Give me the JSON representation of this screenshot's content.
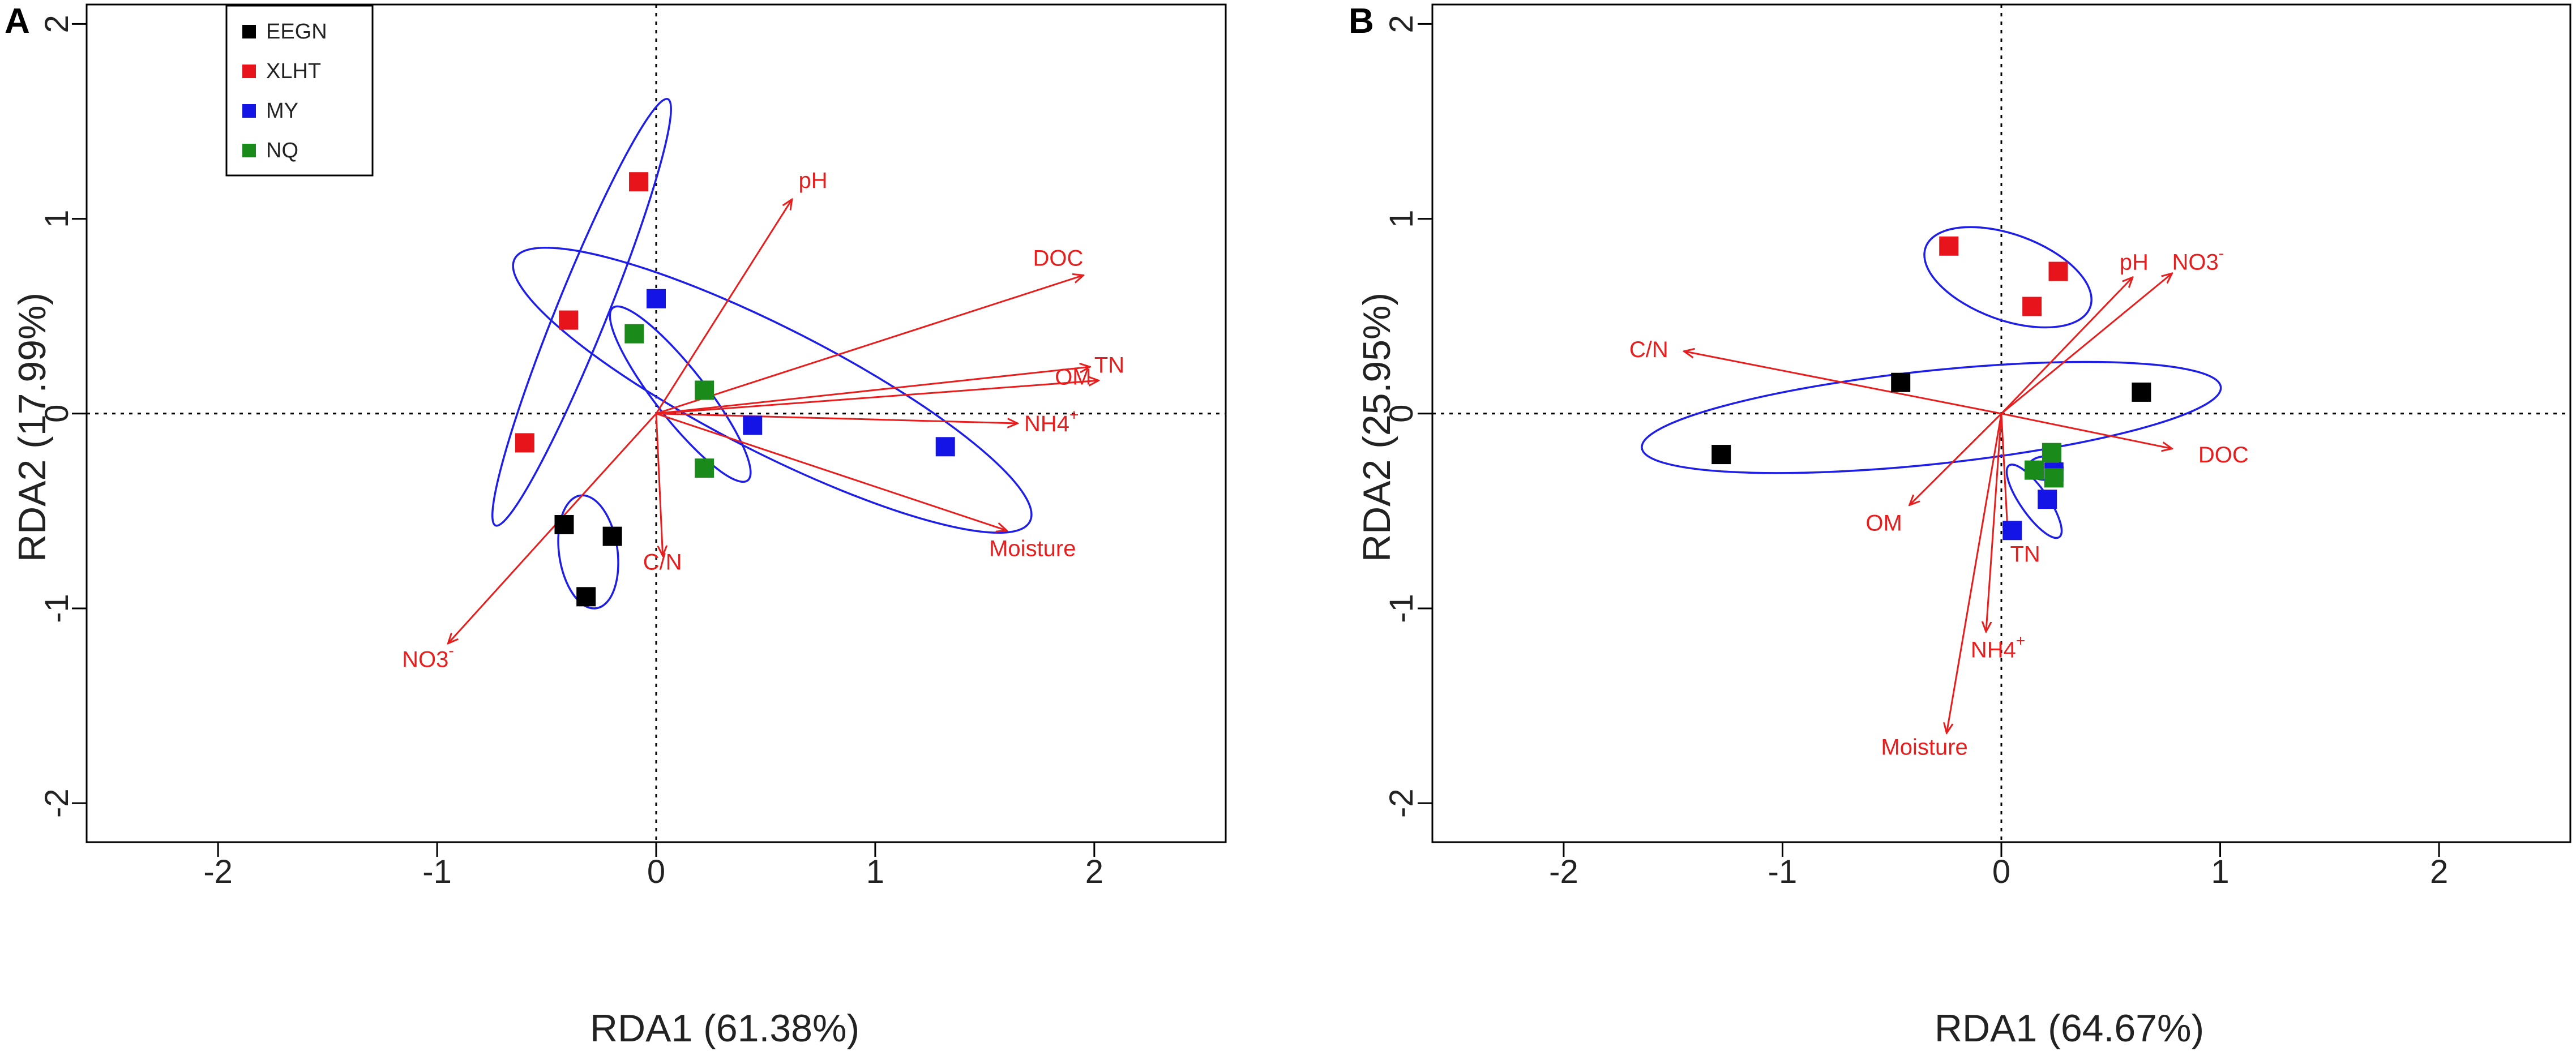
{
  "colors": {
    "EEGN": "#000000",
    "XLHT": "#e8141c",
    "MY": "#1414e6",
    "NQ": "#1a8a1a",
    "arrow": "#e61e1e",
    "ellipse": "#1e1ee6",
    "axis": "#000000"
  },
  "chart_data": [
    {
      "panel_label": "A",
      "type": "scatter",
      "xlabel": "RDA1 (61.38%)",
      "ylabel": "RDA2 (17.99%)",
      "xlim": [
        -2.6,
        2.6
      ],
      "ylim": [
        -2.2,
        2.1
      ],
      "xticks": [
        -2,
        -1,
        0,
        1,
        2
      ],
      "yticks": [
        -2,
        -1,
        0,
        1,
        2
      ],
      "legend": {
        "placement": "top-left",
        "entries": [
          {
            "name": "EEGN",
            "color_key": "EEGN"
          },
          {
            "name": "XLHT",
            "color_key": "XLHT"
          },
          {
            "name": "MY",
            "color_key": "MY"
          },
          {
            "name": "NQ",
            "color_key": "NQ"
          }
        ]
      },
      "series": [
        {
          "name": "EEGN",
          "points": [
            [
              -0.42,
              -0.57
            ],
            [
              -0.2,
              -0.63
            ],
            [
              -0.32,
              -0.94
            ]
          ]
        },
        {
          "name": "XLHT",
          "points": [
            [
              -0.08,
              1.19
            ],
            [
              -0.4,
              0.48
            ],
            [
              -0.6,
              -0.15
            ]
          ]
        },
        {
          "name": "MY",
          "points": [
            [
              0.0,
              0.59
            ],
            [
              0.44,
              -0.06
            ],
            [
              1.32,
              -0.17
            ]
          ]
        },
        {
          "name": "NQ",
          "points": [
            [
              -0.1,
              0.41
            ],
            [
              0.22,
              0.12
            ],
            [
              0.22,
              -0.28
            ]
          ]
        }
      ],
      "arrows": [
        {
          "label": "pH",
          "x": 0.62,
          "y": 1.1,
          "label_x": 0.65,
          "label_y": 1.19
        },
        {
          "label": "DOC",
          "x": 1.95,
          "y": 0.71,
          "label_x": 1.72,
          "label_y": 0.79
        },
        {
          "label": "TN",
          "x": 1.98,
          "y": 0.24,
          "label_x": 2.0,
          "label_y": 0.24
        },
        {
          "label": "OM",
          "x": 2.02,
          "y": 0.17,
          "label_x": 1.82,
          "label_y": 0.18
        },
        {
          "label": "NH4",
          "label_sup": "+",
          "x": 1.65,
          "y": -0.05,
          "label_x": 1.68,
          "label_y": -0.06
        },
        {
          "label": "Moisture",
          "x": 1.6,
          "y": -0.6,
          "label_x": 1.52,
          "label_y": -0.7
        },
        {
          "label": "C/N",
          "x": 0.03,
          "y": -0.73,
          "label_x": -0.06,
          "label_y": -0.77
        },
        {
          "label": "NO3",
          "label_sup": "-",
          "x": -0.95,
          "y": -1.18,
          "label_x": -1.16,
          "label_y": -1.27
        }
      ],
      "ellipses": [
        {
          "group": "XLHT",
          "cx": -0.34,
          "cy": 0.52,
          "rx": 1.05,
          "ry": 0.13,
          "angle_deg": 68
        },
        {
          "group": "MY",
          "cx": 0.53,
          "cy": 0.12,
          "rx": 1.32,
          "ry": 0.32,
          "angle_deg": -27
        },
        {
          "group": "NQ",
          "cx": 0.11,
          "cy": 0.1,
          "rx": 0.5,
          "ry": 0.13,
          "angle_deg": -52
        },
        {
          "group": "EEGN",
          "cx": -0.31,
          "cy": -0.71,
          "rx": 0.26,
          "ry": 0.15,
          "angle_deg": -82
        }
      ]
    },
    {
      "panel_label": "B",
      "type": "scatter",
      "xlabel": "RDA1 (64.67%)",
      "ylabel": "RDA2 (25.95%)",
      "xlim": [
        -2.6,
        2.6
      ],
      "ylim": [
        -2.2,
        2.1
      ],
      "xticks": [
        -2,
        -1,
        0,
        1,
        2
      ],
      "yticks": [
        -2,
        -1,
        0,
        1,
        2
      ],
      "series": [
        {
          "name": "EEGN",
          "points": [
            [
              -0.46,
              0.16
            ],
            [
              0.64,
              0.11
            ],
            [
              -1.28,
              -0.21
            ]
          ]
        },
        {
          "name": "XLHT",
          "points": [
            [
              -0.24,
              0.86
            ],
            [
              0.26,
              0.73
            ],
            [
              0.14,
              0.55
            ]
          ]
        },
        {
          "name": "MY",
          "points": [
            [
              0.05,
              -0.6
            ],
            [
              0.21,
              -0.44
            ],
            [
              0.24,
              -0.3
            ]
          ]
        },
        {
          "name": "NQ",
          "points": [
            [
              0.23,
              -0.2
            ],
            [
              0.15,
              -0.29
            ],
            [
              0.24,
              -0.33
            ]
          ]
        }
      ],
      "arrows": [
        {
          "label": "pH",
          "x": 0.6,
          "y": 0.7,
          "label_x": 0.54,
          "label_y": 0.77
        },
        {
          "label": "NO3",
          "label_sup": "-",
          "x": 0.78,
          "y": 0.72,
          "label_x": 0.78,
          "label_y": 0.77
        },
        {
          "label": "C/N",
          "x": -1.45,
          "y": 0.32,
          "label_x": -1.7,
          "label_y": 0.32
        },
        {
          "label": "DOC",
          "x": 0.78,
          "y": -0.18,
          "label_x": 0.9,
          "label_y": -0.22
        },
        {
          "label": "OM",
          "x": -0.42,
          "y": -0.47,
          "label_x": -0.62,
          "label_y": -0.57
        },
        {
          "label": "TN",
          "x": 0.03,
          "y": -0.63,
          "label_x": 0.04,
          "label_y": -0.73
        },
        {
          "label": "NH4",
          "label_sup": "+",
          "x": -0.07,
          "y": -1.12,
          "label_x": -0.14,
          "label_y": -1.22
        },
        {
          "label": "Moisture",
          "x": -0.25,
          "y": -1.64,
          "label_x": -0.55,
          "label_y": -1.72
        }
      ],
      "ellipses": [
        {
          "group": "XLHT",
          "cx": 0.03,
          "cy": 0.7,
          "rx": 0.4,
          "ry": 0.22,
          "angle_deg": -20
        },
        {
          "group": "EEGN",
          "cx": -0.32,
          "cy": -0.02,
          "rx": 1.33,
          "ry": 0.24,
          "angle_deg": 6
        },
        {
          "group": "NQ",
          "cx": 0.2,
          "cy": -0.28,
          "rx": 0.08,
          "ry": 0.06,
          "angle_deg": 0
        },
        {
          "group": "MY",
          "cx": 0.15,
          "cy": -0.45,
          "rx": 0.2,
          "ry": 0.07,
          "angle_deg": -55
        }
      ]
    }
  ]
}
